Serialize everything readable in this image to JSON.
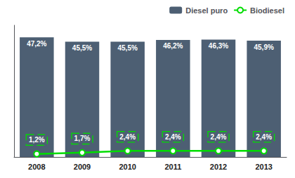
{
  "chart_data": {
    "type": "bar",
    "categories": [
      "2008",
      "2009",
      "2010",
      "2011",
      "2012",
      "2013"
    ],
    "series": [
      {
        "name": "Diesel puro",
        "type": "bar",
        "color": "#4d5f73",
        "values": [
          47.2,
          45.5,
          45.5,
          46.2,
          46.3,
          45.9
        ],
        "value_labels": [
          "47,2%",
          "45,5%",
          "45,5%",
          "46,2%",
          "46,3%",
          "45,9%"
        ]
      },
      {
        "name": "Biodiesel",
        "type": "line",
        "color": "#00dd00",
        "marker": "circle",
        "values": [
          1.2,
          1.7,
          2.4,
          2.4,
          2.4,
          2.4
        ],
        "value_labels": [
          "1,2%",
          "1,7%",
          "2,4%",
          "2,4%",
          "2,4%",
          "2,4%"
        ]
      }
    ],
    "ylim": [
      0,
      52
    ],
    "grid": false,
    "legend": "upper right",
    "data_labels": true,
    "tick_labels": "x"
  }
}
